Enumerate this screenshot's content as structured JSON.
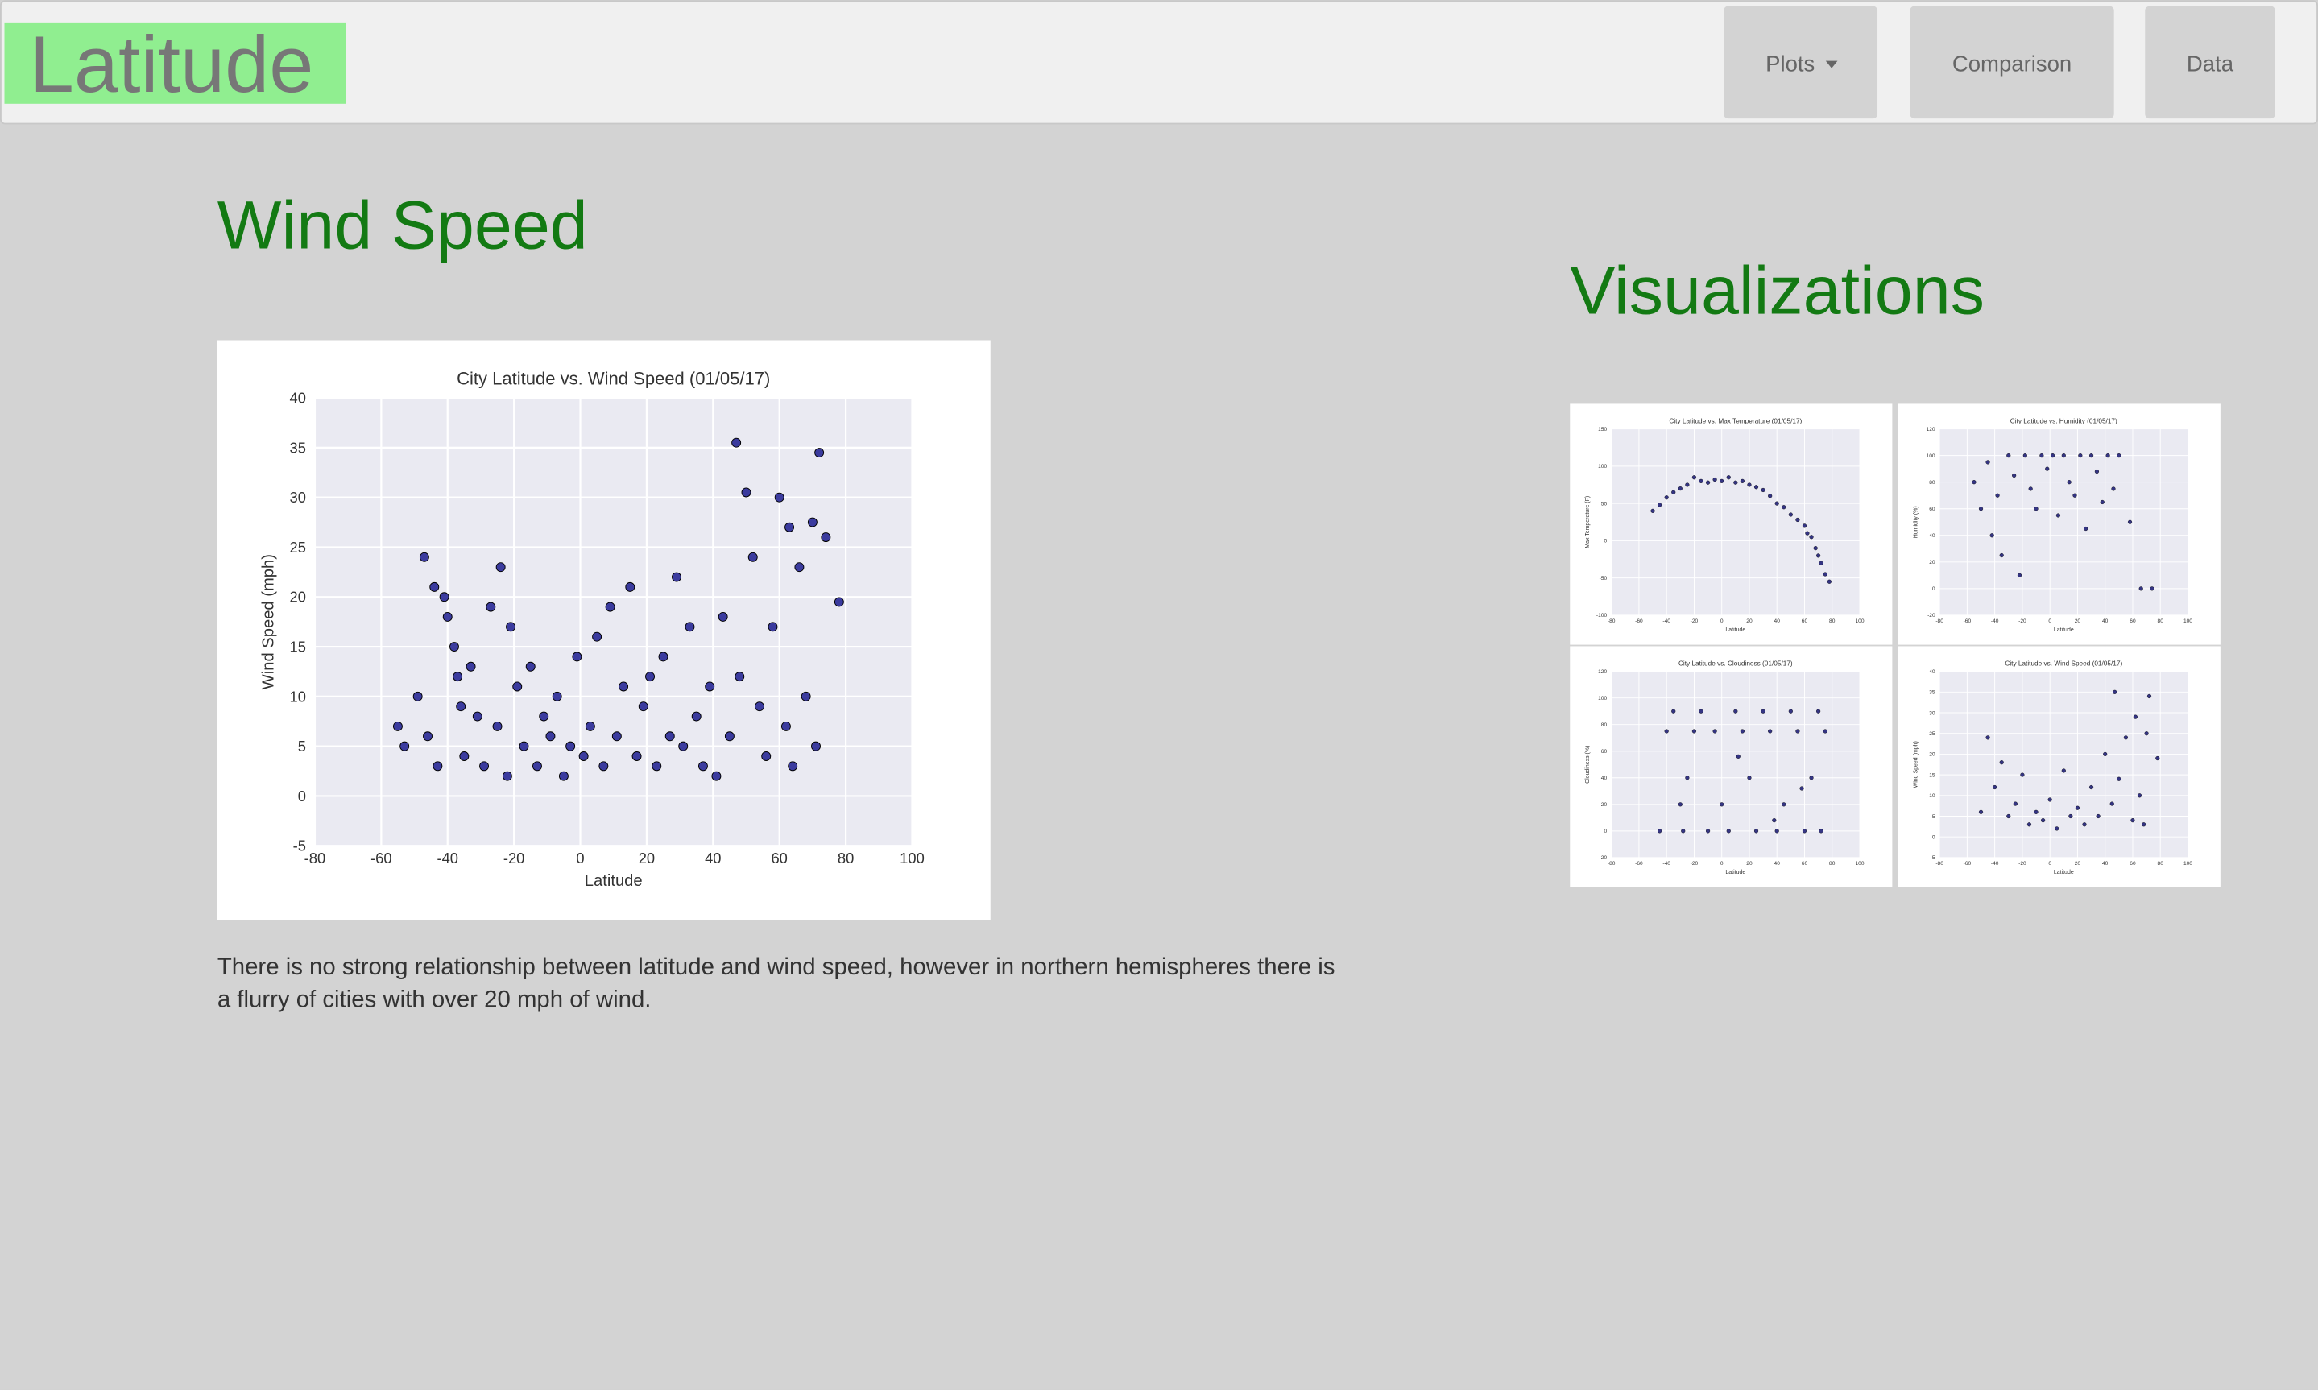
{
  "navbar": {
    "brand": "Latitude",
    "items": [
      "Plots",
      "Comparison",
      "Data"
    ]
  },
  "main": {
    "heading": "Wind Speed",
    "text": "There is no strong relationship between latitude and wind speed, however in northern hemispheres there is a flurry of cities with over 20 mph of wind."
  },
  "sidebar": {
    "heading": "Visualizations"
  },
  "chart_data": [
    {
      "type": "scatter",
      "title": "City Latitude vs. Wind Speed (01/05/17)",
      "x_label": "Latitude",
      "y_label": "Wind Speed (mph)",
      "color": "#1c1c8f",
      "grid": true,
      "xlim": [
        -80,
        100
      ],
      "xticks": [
        -80,
        -60,
        -40,
        -20,
        0,
        20,
        40,
        60,
        80,
        100
      ],
      "ylim": [
        -5,
        40
      ],
      "yticks": [
        -5,
        0,
        5,
        10,
        15,
        20,
        25,
        30,
        35,
        40
      ],
      "x": [
        -55,
        -53,
        -49,
        -47,
        -46,
        -44,
        -43,
        -41,
        -40,
        -38,
        -37,
        -36,
        -35,
        -33,
        -31,
        -29,
        -27,
        -25,
        -24,
        -22,
        -21,
        -19,
        -17,
        -15,
        -13,
        -11,
        -9,
        -7,
        -5,
        -3,
        -1,
        1,
        3,
        5,
        7,
        9,
        11,
        13,
        15,
        17,
        19,
        21,
        23,
        25,
        27,
        29,
        31,
        33,
        35,
        37,
        39,
        41,
        43,
        45,
        47,
        48,
        50,
        52,
        54,
        56,
        58,
        60,
        62,
        63,
        64,
        66,
        68,
        70,
        71,
        72,
        74,
        78
      ],
      "values": [
        7,
        5,
        10,
        24,
        6,
        21,
        3,
        20,
        18,
        15,
        12,
        9,
        4,
        13,
        8,
        3,
        19,
        7,
        23,
        2,
        17,
        11,
        5,
        13,
        3,
        8,
        6,
        10,
        2,
        5,
        14,
        4,
        7,
        16,
        3,
        19,
        6,
        11,
        21,
        4,
        9,
        12,
        3,
        14,
        6,
        22,
        5,
        17,
        8,
        3,
        11,
        2,
        18,
        6,
        35.5,
        12,
        30.5,
        24,
        9,
        4,
        17,
        30,
        7,
        27,
        3,
        23,
        10,
        27.5,
        5,
        34.5,
        26,
        19.5
      ]
    },
    {
      "type": "scatter",
      "title": "City Latitude vs. Max Temperature (01/05/17)",
      "x_label": "Latitude",
      "y_label": "Max Temperature (F)",
      "color": "#141470",
      "grid": true,
      "xlim": [
        -80,
        100
      ],
      "xticks": [
        -80,
        -60,
        -40,
        -20,
        0,
        20,
        40,
        60,
        80,
        100
      ],
      "ylim": [
        -100,
        150
      ],
      "yticks": [
        -100,
        -50,
        0,
        50,
        100,
        150
      ],
      "x": [
        -50,
        -45,
        -40,
        -35,
        -30,
        -25,
        -20,
        -15,
        -10,
        -5,
        0,
        5,
        10,
        15,
        20,
        25,
        30,
        35,
        40,
        45,
        50,
        55,
        60,
        62,
        65,
        68,
        70,
        72,
        75,
        78
      ],
      "values": [
        40,
        48,
        58,
        65,
        70,
        75,
        85,
        80,
        78,
        82,
        80,
        85,
        78,
        80,
        75,
        72,
        68,
        60,
        50,
        45,
        35,
        28,
        20,
        10,
        5,
        -10,
        -20,
        -30,
        -45,
        -55
      ]
    },
    {
      "type": "scatter",
      "title": "City Latitude vs. Humidity (01/05/17)",
      "x_label": "Latitude",
      "y_label": "Humidity (%)",
      "color": "#141470",
      "grid": true,
      "xlim": [
        -80,
        100
      ],
      "xticks": [
        -80,
        -60,
        -40,
        -20,
        0,
        20,
        40,
        60,
        80,
        100
      ],
      "ylim": [
        -20,
        120
      ],
      "yticks": [
        -20,
        0,
        20,
        40,
        60,
        80,
        100,
        120
      ],
      "x": [
        -55,
        -50,
        -45,
        -42,
        -38,
        -35,
        -30,
        -26,
        -22,
        -18,
        -14,
        -10,
        -6,
        -2,
        2,
        6,
        10,
        14,
        18,
        22,
        26,
        30,
        34,
        38,
        42,
        46,
        50,
        58,
        66,
        74
      ],
      "values": [
        80,
        60,
        95,
        40,
        70,
        25,
        100,
        85,
        10,
        100,
        75,
        60,
        100,
        90,
        100,
        55,
        100,
        80,
        70,
        100,
        45,
        100,
        88,
        65,
        100,
        75,
        100,
        50,
        0,
        0
      ]
    },
    {
      "type": "scatter",
      "title": "City Latitude vs. Cloudiness (01/05/17)",
      "x_label": "Latitude",
      "y_label": "Cloudiness (%)",
      "color": "#141470",
      "grid": true,
      "xlim": [
        -80,
        100
      ],
      "xticks": [
        -80,
        -60,
        -40,
        -20,
        0,
        20,
        40,
        60,
        80,
        100
      ],
      "ylim": [
        -20,
        120
      ],
      "yticks": [
        -20,
        0,
        20,
        40,
        60,
        80,
        100,
        120
      ],
      "x": [
        -45,
        -40,
        -35,
        -30,
        -25,
        -20,
        -15,
        -10,
        -5,
        0,
        5,
        10,
        15,
        20,
        25,
        30,
        35,
        40,
        45,
        50,
        55,
        60,
        65,
        70,
        75,
        -28,
        12,
        38,
        58,
        72
      ],
      "values": [
        0,
        75,
        90,
        20,
        40,
        75,
        90,
        0,
        75,
        20,
        0,
        90,
        75,
        40,
        0,
        90,
        75,
        0,
        20,
        90,
        75,
        0,
        40,
        90,
        75,
        0,
        56,
        8,
        32,
        0
      ]
    },
    {
      "type": "scatter",
      "title": "City Latitude vs. Wind Speed (01/05/17)",
      "x_label": "Latitude",
      "y_label": "Wind Speed (mph)",
      "color": "#141470",
      "grid": true,
      "xlim": [
        -80,
        100
      ],
      "xticks": [
        -80,
        -60,
        -40,
        -20,
        0,
        20,
        40,
        60,
        80,
        100
      ],
      "ylim": [
        -5,
        40
      ],
      "yticks": [
        -5,
        0,
        5,
        10,
        15,
        20,
        25,
        30,
        35,
        40
      ],
      "x": [
        -50,
        -45,
        -40,
        -35,
        -30,
        -25,
        -20,
        -15,
        -10,
        -5,
        0,
        5,
        10,
        15,
        20,
        25,
        30,
        35,
        40,
        45,
        47,
        50,
        55,
        60,
        62,
        65,
        68,
        70,
        72,
        78
      ],
      "values": [
        6,
        24,
        12,
        18,
        5,
        8,
        15,
        3,
        6,
        4,
        9,
        2,
        16,
        5,
        7,
        3,
        12,
        5,
        20,
        8,
        35,
        14,
        24,
        4,
        29,
        10,
        3,
        25,
        34,
        19
      ]
    }
  ]
}
